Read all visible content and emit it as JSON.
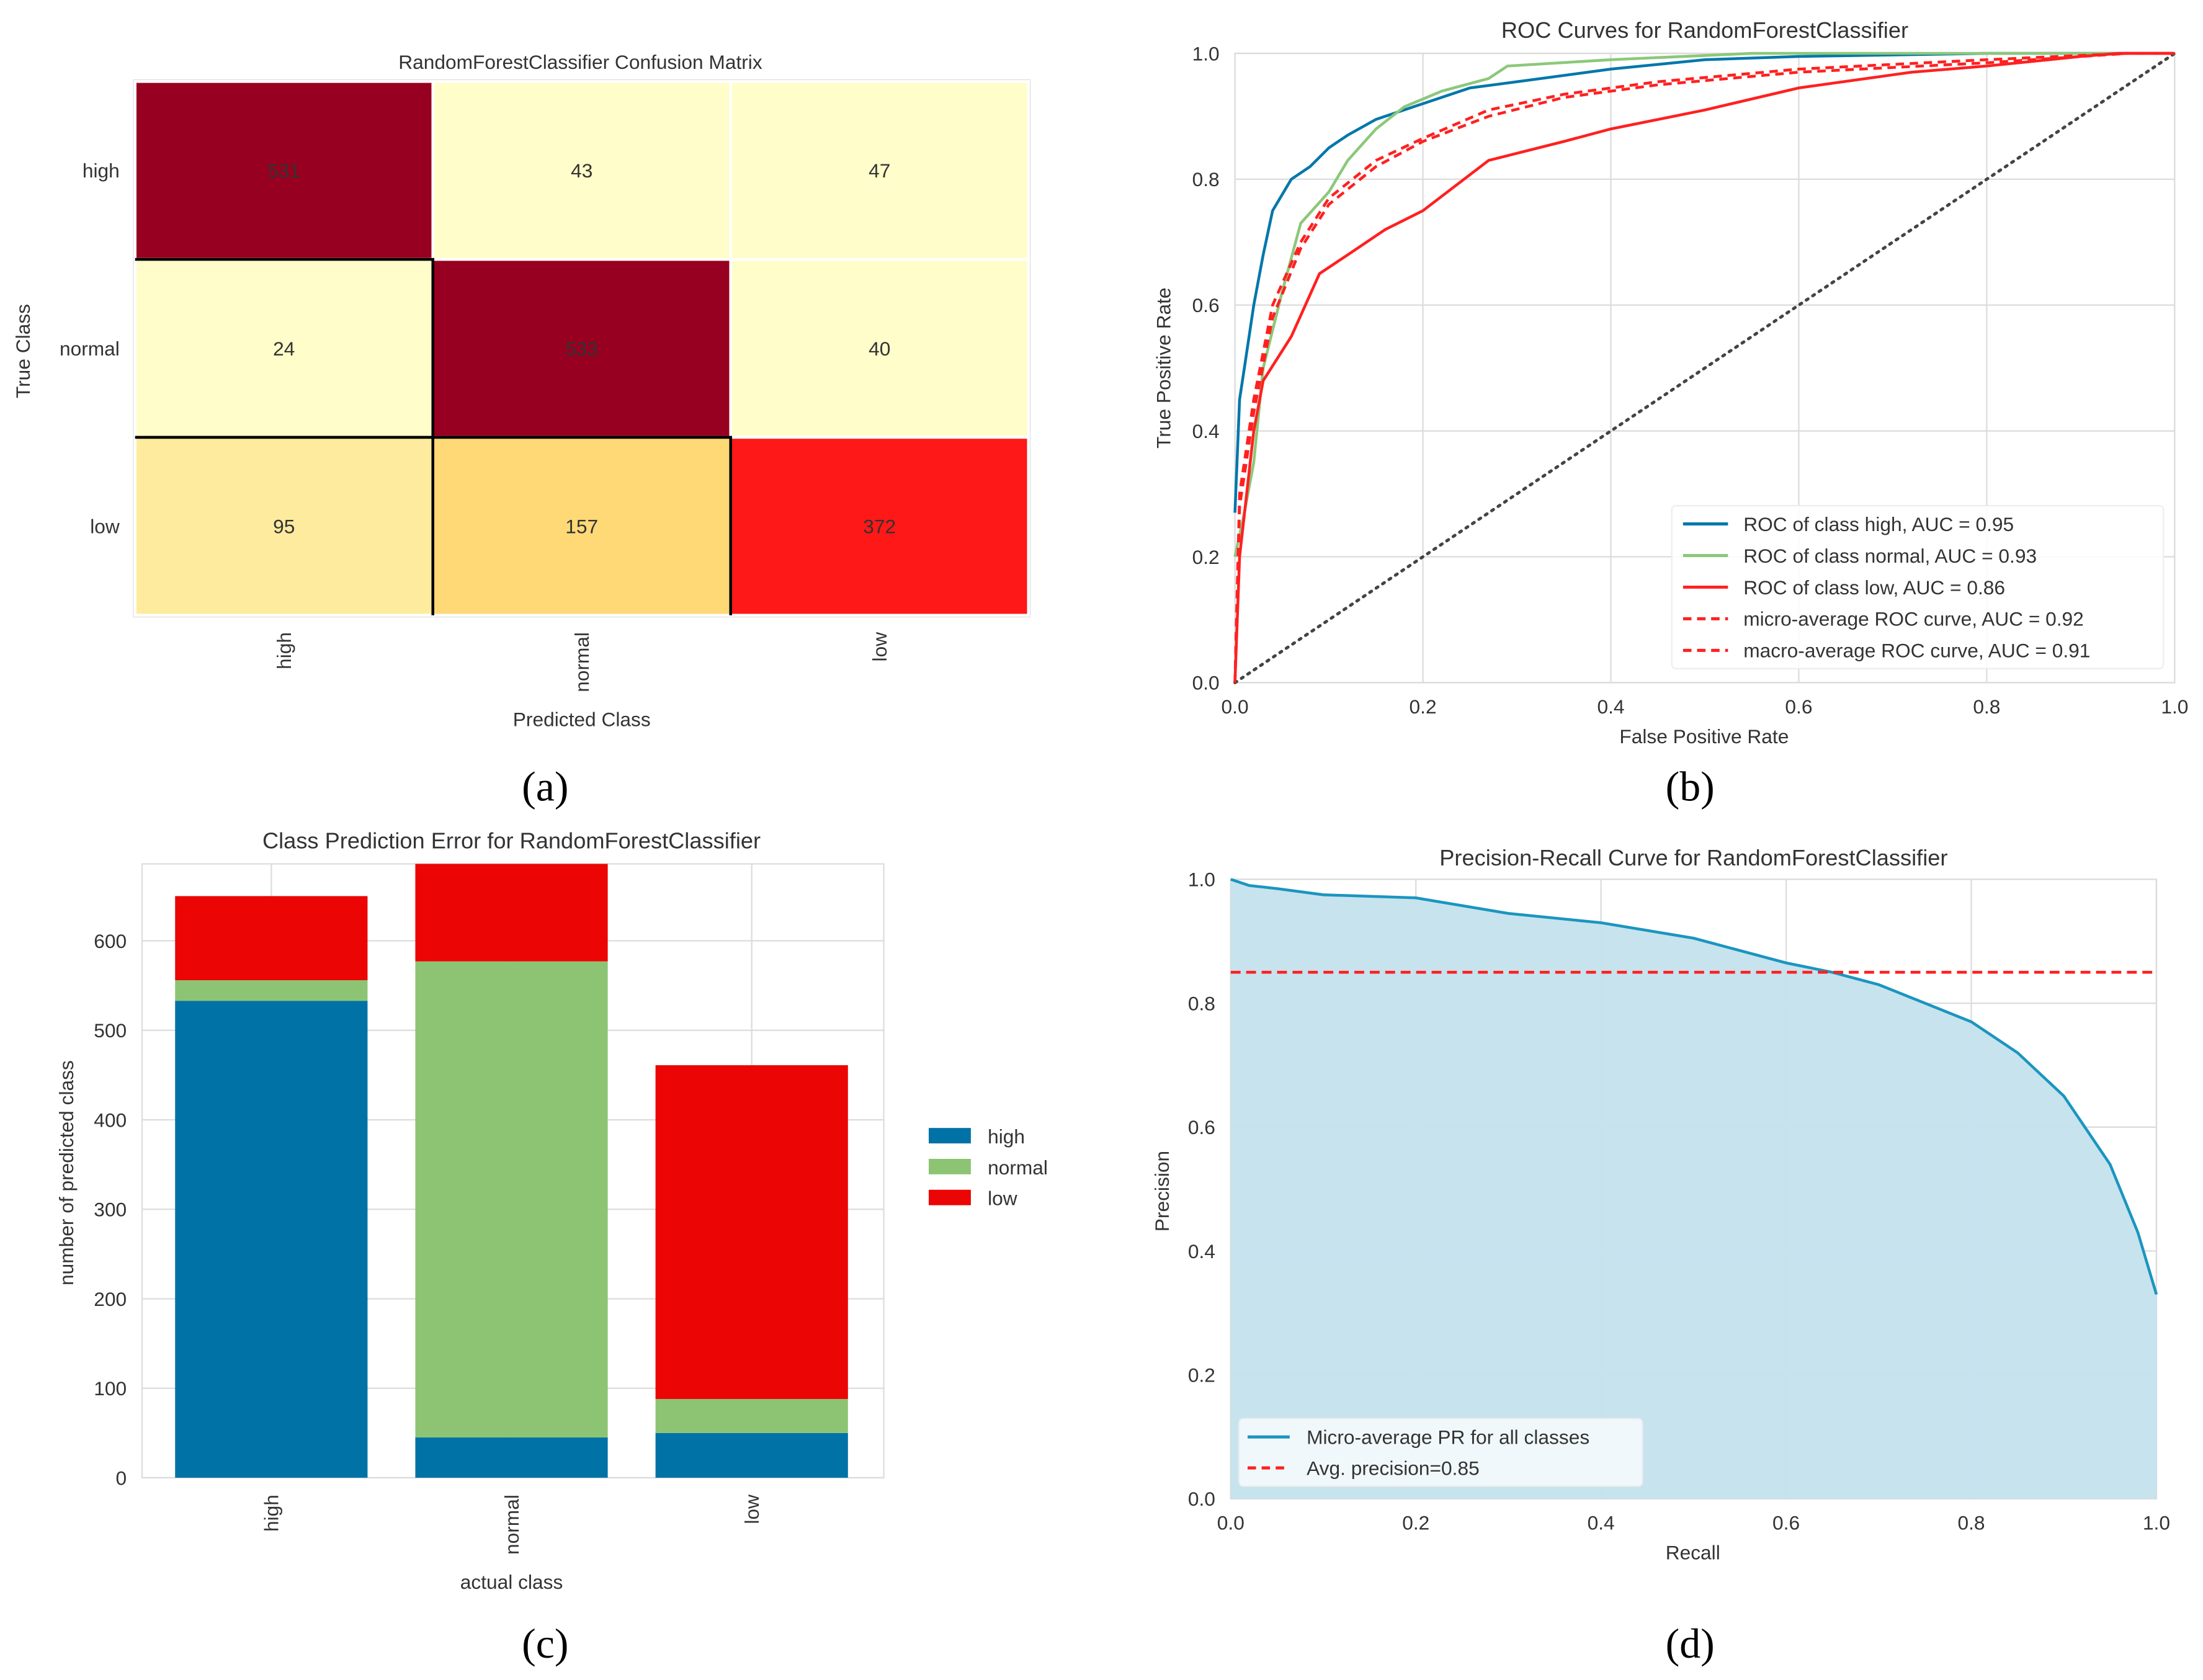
{
  "chart_data": [
    {
      "panel": "(a)",
      "type": "heatmap",
      "title": "RandomForestClassifier Confusion Matrix",
      "xlabel": "Predicted Class",
      "ylabel": "True Class",
      "rows": [
        "high",
        "normal",
        "low"
      ],
      "cols": [
        "high",
        "normal",
        "low"
      ],
      "values": [
        [
          531,
          43,
          47
        ],
        [
          24,
          533,
          40
        ],
        [
          95,
          157,
          372
        ]
      ],
      "cell_colors": [
        [
          "#970020",
          "#fffdc9",
          "#fffdc9"
        ],
        [
          "#fffdc9",
          "#970020",
          "#fffdc9"
        ],
        [
          "#feeb9e",
          "#fed976",
          "#fe1818"
        ]
      ],
      "text_colors": [
        [
          "#ffffff",
          "#222222",
          "#222222"
        ],
        [
          "#222222",
          "#ffffff",
          "#222222"
        ],
        [
          "#222222",
          "#222222",
          "#ffffff"
        ]
      ]
    },
    {
      "panel": "(b)",
      "type": "line",
      "title": "ROC Curves for RandomForestClassifier",
      "xlabel": "False Positive Rate",
      "ylabel": "True Positive Rate",
      "xlim": [
        0,
        1
      ],
      "ylim": [
        0,
        1
      ],
      "xticks": [
        "0.0",
        "0.2",
        "0.4",
        "0.6",
        "0.8",
        "1.0"
      ],
      "yticks": [
        "0.0",
        "0.2",
        "0.4",
        "0.6",
        "0.8",
        "1.0"
      ],
      "grid": true,
      "legend_position": "bottom-right",
      "series": [
        {
          "name": "ROC of class high, AUC = 0.95",
          "color": "#0077aa",
          "dash": false,
          "x": [
            0,
            0.005,
            0.01,
            0.02,
            0.03,
            0.04,
            0.06,
            0.08,
            0.1,
            0.12,
            0.15,
            0.2,
            0.25,
            0.3,
            0.4,
            0.5,
            0.6,
            0.8,
            1
          ],
          "y": [
            0.27,
            0.45,
            0.5,
            0.6,
            0.68,
            0.75,
            0.8,
            0.82,
            0.85,
            0.87,
            0.895,
            0.92,
            0.945,
            0.955,
            0.975,
            0.99,
            0.995,
            1,
            1
          ]
        },
        {
          "name": "ROC of class normal, AUC = 0.93",
          "color": "#8cc87a",
          "dash": false,
          "x": [
            0,
            0.01,
            0.02,
            0.03,
            0.05,
            0.07,
            0.1,
            0.12,
            0.15,
            0.18,
            0.22,
            0.27,
            0.29,
            0.4,
            0.55,
            1
          ],
          "y": [
            0.2,
            0.27,
            0.35,
            0.5,
            0.62,
            0.73,
            0.78,
            0.83,
            0.88,
            0.915,
            0.94,
            0.96,
            0.98,
            0.99,
            1,
            1
          ]
        },
        {
          "name": "ROC of class low, AUC = 0.86",
          "color": "#ff2020",
          "dash": false,
          "x": [
            0,
            0.005,
            0.02,
            0.03,
            0.06,
            0.09,
            0.12,
            0.16,
            0.2,
            0.27,
            0.35,
            0.4,
            0.5,
            0.6,
            0.72,
            0.8,
            0.9,
            0.94,
            1
          ],
          "y": [
            0,
            0.2,
            0.4,
            0.48,
            0.55,
            0.65,
            0.68,
            0.72,
            0.75,
            0.83,
            0.86,
            0.88,
            0.91,
            0.945,
            0.97,
            0.98,
            0.995,
            1,
            1
          ]
        },
        {
          "name": "micro-average ROC curve, AUC = 0.92",
          "color": "#ff2020",
          "dash": true,
          "x": [
            0,
            0.005,
            0.02,
            0.04,
            0.07,
            0.1,
            0.15,
            0.2,
            0.27,
            0.35,
            0.45,
            0.6,
            0.8,
            0.95,
            1
          ],
          "y": [
            0,
            0.3,
            0.45,
            0.6,
            0.7,
            0.77,
            0.83,
            0.865,
            0.91,
            0.935,
            0.955,
            0.975,
            0.99,
            1,
            1
          ]
        },
        {
          "name": "macro-average ROC curve, AUC = 0.91",
          "color": "#ff2020",
          "dash": true,
          "x": [
            0,
            0.005,
            0.02,
            0.04,
            0.07,
            0.1,
            0.15,
            0.2,
            0.27,
            0.35,
            0.45,
            0.6,
            0.8,
            0.95,
            1
          ],
          "y": [
            0,
            0.28,
            0.43,
            0.58,
            0.69,
            0.76,
            0.82,
            0.86,
            0.9,
            0.93,
            0.95,
            0.97,
            0.985,
            1,
            1
          ]
        }
      ]
    },
    {
      "panel": "(c)",
      "type": "bar",
      "stacked": true,
      "title": "Class Prediction Error for RandomForestClassifier",
      "xlabel": "actual class",
      "ylabel": "number of predicted class",
      "categories": [
        "high",
        "normal",
        "low"
      ],
      "ylim": [
        0,
        686
      ],
      "yticks": [
        0,
        100,
        200,
        300,
        400,
        500,
        600
      ],
      "grid": true,
      "legend_position": "right",
      "series": [
        {
          "name": "high",
          "color": "#0072a6",
          "values": [
            533,
            45,
            50
          ]
        },
        {
          "name": "normal",
          "color": "#8dc474",
          "values": [
            23,
            532,
            38
          ]
        },
        {
          "name": "low",
          "color": "#eb0505",
          "values": [
            94,
            110,
            373
          ]
        }
      ]
    },
    {
      "panel": "(d)",
      "type": "area",
      "title": "Precision-Recall Curve for RandomForestClassifier",
      "xlabel": "Recall",
      "ylabel": "Precision",
      "xlim": [
        0,
        1
      ],
      "ylim": [
        0,
        1
      ],
      "xticks": [
        "0.0",
        "0.2",
        "0.4",
        "0.6",
        "0.8",
        "1.0"
      ],
      "yticks": [
        "0.0",
        "0.2",
        "0.4",
        "0.6",
        "0.8",
        "1.0"
      ],
      "grid": true,
      "legend_position": "bottom-left",
      "series": [
        {
          "name": "Micro-average PR for all classes",
          "color": "#1b95c0",
          "fill": "#c4e2ed",
          "x": [
            0,
            0.02,
            0.05,
            0.1,
            0.2,
            0.3,
            0.4,
            0.5,
            0.6,
            0.65,
            0.7,
            0.75,
            0.8,
            0.85,
            0.9,
            0.95,
            0.98,
            1.0
          ],
          "y": [
            1,
            0.99,
            0.985,
            0.975,
            0.97,
            0.945,
            0.93,
            0.905,
            0.865,
            0.85,
            0.83,
            0.8,
            0.77,
            0.72,
            0.65,
            0.54,
            0.43,
            0.33
          ]
        }
      ],
      "avg_precision": {
        "label": "Avg. precision=0.85",
        "value": 0.85,
        "color": "#ff2020"
      }
    }
  ],
  "captions": [
    "(a)",
    "(b)",
    "(c)",
    "(d)"
  ]
}
